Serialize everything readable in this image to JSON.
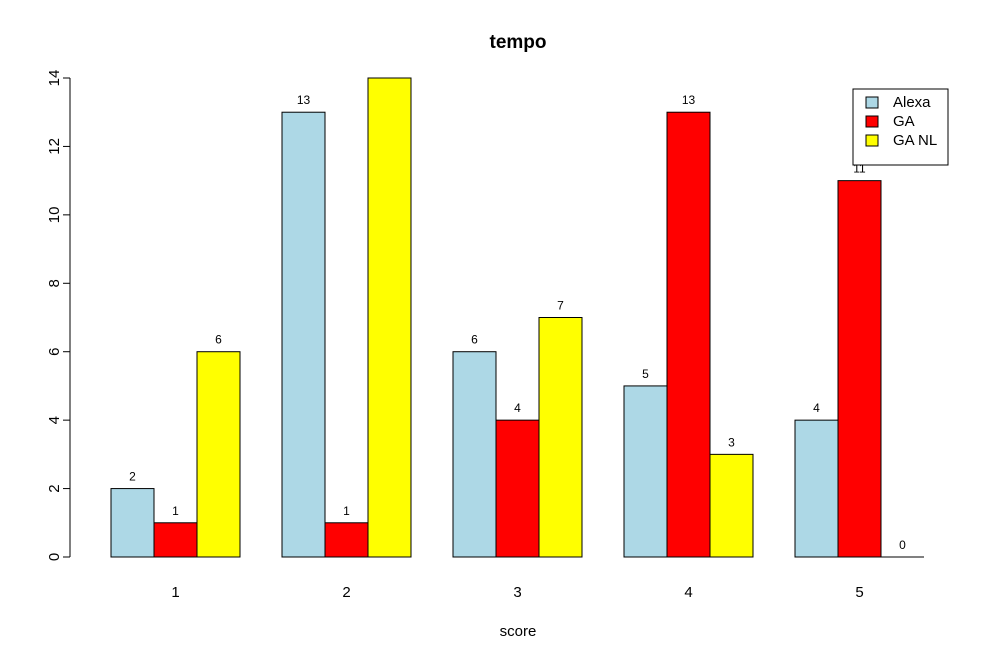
{
  "chart_data": {
    "type": "bar",
    "title": "tempo",
    "xlabel": "score",
    "ylabel": "",
    "categories": [
      "1",
      "2",
      "3",
      "4",
      "5"
    ],
    "series": [
      {
        "name": "Alexa",
        "color": "#ADD8E6",
        "values": [
          2,
          13,
          6,
          5,
          4
        ]
      },
      {
        "name": "GA",
        "color": "#FF0000",
        "values": [
          1,
          1,
          4,
          13,
          11
        ]
      },
      {
        "name": "GA NL",
        "color": "#FFFF00",
        "values": [
          6,
          14,
          7,
          3,
          0
        ]
      }
    ],
    "ylim": [
      0,
      14
    ],
    "yticks": [
      0,
      2,
      4,
      6,
      8,
      10,
      12,
      14
    ],
    "data_labels": [
      [
        "2",
        "1",
        "6"
      ],
      [
        "13",
        "1",
        ""
      ],
      [
        "6",
        "4",
        "7"
      ],
      [
        "5",
        "13",
        "3"
      ],
      [
        "4",
        "11",
        "0"
      ]
    ],
    "legend_position": "top-right",
    "grid": false
  }
}
